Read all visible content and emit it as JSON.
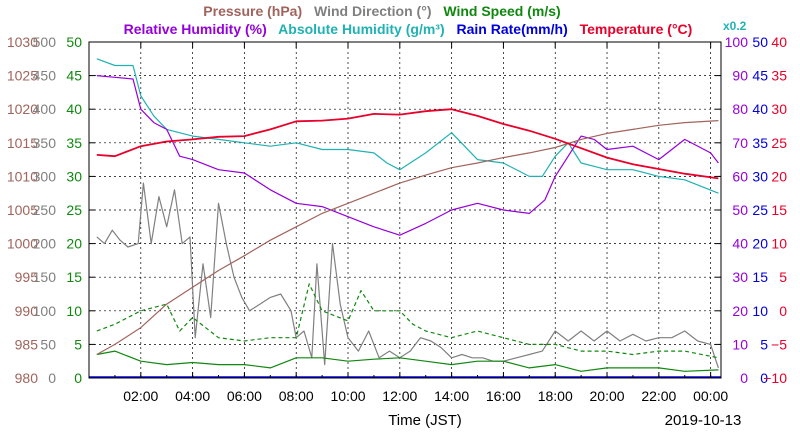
{
  "chart_data": {
    "type": "line",
    "title_row1": [
      {
        "text": "Pressure (hPa)",
        "color": "#a0645c"
      },
      {
        "text": "Wind Direction (°)",
        "color": "#808080"
      },
      {
        "text": "Wind Speed (m/s)",
        "color": "#108810"
      }
    ],
    "title_row2": [
      {
        "text": "Relative Humidity (%)",
        "color": "#9600dc"
      },
      {
        "text": "Absolute Humidity (g/m³)",
        "color": "#20b2b2"
      },
      {
        "text": "Rain Rate(mm/h)",
        "color": "#0000dd"
      },
      {
        "text": "Temperature (°C)",
        "color": "#e8002a"
      }
    ],
    "abs_scale_note": "x0.2",
    "xlabel": "Time (JST)",
    "date": "2019-10-13",
    "x_unit": "hours since 2019-10-13 00:00 JST",
    "xlim": [
      0,
      24.4
    ],
    "x_ticks": [
      {
        "h": 2,
        "label": "02:00"
      },
      {
        "h": 4,
        "label": "04:00"
      },
      {
        "h": 6,
        "label": "06:00"
      },
      {
        "h": 8,
        "label": "08:00"
      },
      {
        "h": 10,
        "label": "10:00"
      },
      {
        "h": 12,
        "label": "12:00"
      },
      {
        "h": 14,
        "label": "14:00"
      },
      {
        "h": 16,
        "label": "16:00"
      },
      {
        "h": 18,
        "label": "18:00"
      },
      {
        "h": 20,
        "label": "20:00"
      },
      {
        "h": 22,
        "label": "22:00"
      },
      {
        "h": 24,
        "label": "00:00"
      }
    ],
    "axes": [
      {
        "name": "Pressure",
        "side": "left",
        "color": "#a0645c",
        "min": 980,
        "max": 1030,
        "ticks": [
          "980",
          "985",
          "990",
          "995",
          "1000",
          "1005",
          "1010",
          "1015",
          "1020",
          "1025",
          "1030"
        ]
      },
      {
        "name": "Wind Direction",
        "side": "left",
        "color": "#808080",
        "min": 0,
        "max": 500,
        "ticks": [
          "0",
          "50",
          "100",
          "150",
          "200",
          "250",
          "300",
          "350",
          "400",
          "450",
          "500"
        ]
      },
      {
        "name": "Wind Speed",
        "side": "left",
        "color": "#108810",
        "min": 0,
        "max": 50,
        "ticks": [
          "0",
          "5",
          "10",
          "15",
          "20",
          "25",
          "30",
          "35",
          "40",
          "45",
          "50"
        ]
      },
      {
        "name": "Relative Humidity",
        "side": "right",
        "color": "#9600dc",
        "min": 0,
        "max": 100,
        "ticks": [
          "0",
          "10",
          "20",
          "30",
          "40",
          "50",
          "60",
          "70",
          "80",
          "90",
          "100"
        ]
      },
      {
        "name": "Rain Rate",
        "side": "right",
        "color": "#0000dd",
        "min": 0,
        "max": 50,
        "ticks": [
          "0",
          "5",
          "10",
          "15",
          "20",
          "25",
          "30",
          "35",
          "40",
          "45",
          "50"
        ]
      },
      {
        "name": "Temperature",
        "side": "right",
        "color": "#e8002a",
        "min": -10,
        "max": 40,
        "ticks": [
          "−10",
          "−5",
          "0",
          "5",
          "10",
          "15",
          "20",
          "25",
          "30",
          "35",
          "40"
        ]
      }
    ],
    "series": [
      {
        "name": "Pressure",
        "color": "#a0645c",
        "axis": "Pressure",
        "style": "solid",
        "points": [
          [
            0.3,
            983.5
          ],
          [
            1,
            985
          ],
          [
            2,
            987.5
          ],
          [
            3,
            991
          ],
          [
            4,
            993.5
          ],
          [
            5,
            996
          ],
          [
            6,
            998.2
          ],
          [
            7,
            1000.5
          ],
          [
            8,
            1002.5
          ],
          [
            9,
            1004.5
          ],
          [
            10,
            1006
          ],
          [
            11,
            1007.5
          ],
          [
            12,
            1009
          ],
          [
            13,
            1010.2
          ],
          [
            14,
            1011.3
          ],
          [
            15,
            1012
          ],
          [
            16,
            1012.8
          ],
          [
            17,
            1013.5
          ],
          [
            18,
            1014.3
          ],
          [
            19,
            1015.5
          ],
          [
            20,
            1016.4
          ],
          [
            21,
            1017
          ],
          [
            22,
            1017.6
          ],
          [
            23,
            1018
          ],
          [
            24.3,
            1018.3
          ]
        ]
      },
      {
        "name": "Temperature",
        "color": "#e8002a",
        "axis": "Temperature",
        "style": "solid",
        "points": [
          [
            0.3,
            23.2
          ],
          [
            1,
            23
          ],
          [
            2,
            24.5
          ],
          [
            3,
            25.2
          ],
          [
            4,
            25.5
          ],
          [
            5,
            25.9
          ],
          [
            6,
            26
          ],
          [
            7,
            27
          ],
          [
            8,
            28.2
          ],
          [
            9,
            28.3
          ],
          [
            10,
            28.6
          ],
          [
            11,
            29.3
          ],
          [
            12,
            29.2
          ],
          [
            13,
            29.7
          ],
          [
            14,
            30
          ],
          [
            15,
            29
          ],
          [
            16,
            27.8
          ],
          [
            17,
            26.8
          ],
          [
            18,
            25.6
          ],
          [
            19,
            24.2
          ],
          [
            20,
            22.8
          ],
          [
            21,
            21.8
          ],
          [
            22,
            21.1
          ],
          [
            23,
            20.4
          ],
          [
            24.3,
            19.7
          ]
        ]
      },
      {
        "name": "Relative Humidity",
        "color": "#9600dc",
        "axis": "Relative Humidity",
        "style": "solid",
        "points": [
          [
            0.3,
            90
          ],
          [
            1,
            89.5
          ],
          [
            1.7,
            89
          ],
          [
            2,
            80
          ],
          [
            2.5,
            76
          ],
          [
            3,
            74
          ],
          [
            3.5,
            66
          ],
          [
            4,
            65
          ],
          [
            5,
            62
          ],
          [
            6,
            61
          ],
          [
            7,
            56
          ],
          [
            8,
            52
          ],
          [
            9,
            51
          ],
          [
            10,
            48
          ],
          [
            11,
            45
          ],
          [
            12,
            42.5
          ],
          [
            13,
            46
          ],
          [
            14,
            50
          ],
          [
            15,
            52
          ],
          [
            16,
            50
          ],
          [
            17,
            49
          ],
          [
            17.6,
            53
          ],
          [
            18,
            60
          ],
          [
            18.5,
            66
          ],
          [
            19,
            72
          ],
          [
            19.5,
            71
          ],
          [
            20,
            68
          ],
          [
            21,
            69
          ],
          [
            22,
            65
          ],
          [
            23,
            71
          ],
          [
            24,
            67
          ],
          [
            24.3,
            64
          ]
        ]
      },
      {
        "name": "Absolute Humidity",
        "color": "#20b2b2",
        "axis": "Relative Humidity",
        "style": "solid",
        "points": [
          [
            0.3,
            95
          ],
          [
            1,
            93
          ],
          [
            1.7,
            93
          ],
          [
            2,
            84
          ],
          [
            2.5,
            78
          ],
          [
            3,
            74
          ],
          [
            4,
            72
          ],
          [
            5,
            71
          ],
          [
            6,
            70
          ],
          [
            7,
            69
          ],
          [
            8,
            70
          ],
          [
            9,
            68
          ],
          [
            10,
            68
          ],
          [
            11,
            67
          ],
          [
            11.5,
            64
          ],
          [
            12,
            62
          ],
          [
            13,
            67
          ],
          [
            14,
            73
          ],
          [
            14.5,
            69
          ],
          [
            15,
            65
          ],
          [
            16,
            64
          ],
          [
            17,
            60
          ],
          [
            17.5,
            60
          ],
          [
            18,
            66
          ],
          [
            18.5,
            70
          ],
          [
            19,
            64
          ],
          [
            19.5,
            63
          ],
          [
            20,
            62
          ],
          [
            21,
            62
          ],
          [
            22,
            60
          ],
          [
            23,
            59
          ],
          [
            24.3,
            55
          ]
        ]
      },
      {
        "name": "Wind Speed",
        "color": "#108810",
        "axis": "Wind Speed",
        "style": "solid",
        "points": [
          [
            0.3,
            3.5
          ],
          [
            1,
            4
          ],
          [
            2,
            2.5
          ],
          [
            3,
            2
          ],
          [
            4,
            2.3
          ],
          [
            5,
            2
          ],
          [
            6,
            2
          ],
          [
            7,
            1.5
          ],
          [
            8,
            3
          ],
          [
            9,
            3
          ],
          [
            10,
            2.5
          ],
          [
            11,
            2.8
          ],
          [
            12,
            3
          ],
          [
            13,
            2.5
          ],
          [
            14,
            2
          ],
          [
            15,
            2.5
          ],
          [
            16,
            2.5
          ],
          [
            17,
            1.5
          ],
          [
            18,
            2
          ],
          [
            19,
            1
          ],
          [
            20,
            1.5
          ],
          [
            21,
            1.5
          ],
          [
            22,
            1.5
          ],
          [
            23,
            1
          ],
          [
            24.3,
            1.2
          ]
        ]
      },
      {
        "name": "Wind Speed (gust)",
        "color": "#108810",
        "axis": "Wind Speed",
        "style": "dashed",
        "points": [
          [
            0.3,
            7
          ],
          [
            1,
            8
          ],
          [
            2,
            10
          ],
          [
            3,
            11
          ],
          [
            3.5,
            7
          ],
          [
            4,
            9
          ],
          [
            5,
            6
          ],
          [
            6,
            5.5
          ],
          [
            7,
            6
          ],
          [
            8,
            6
          ],
          [
            8.5,
            14
          ],
          [
            9,
            10
          ],
          [
            10,
            8.5
          ],
          [
            10.5,
            13
          ],
          [
            11,
            10
          ],
          [
            12,
            10
          ],
          [
            12.5,
            8
          ],
          [
            13,
            7
          ],
          [
            14,
            6
          ],
          [
            15,
            7
          ],
          [
            16,
            6
          ],
          [
            17,
            5
          ],
          [
            18,
            5
          ],
          [
            19,
            4
          ],
          [
            20,
            4
          ],
          [
            21,
            3.5
          ],
          [
            22,
            4
          ],
          [
            23,
            4
          ],
          [
            24.3,
            3
          ]
        ]
      },
      {
        "name": "Wind Direction",
        "color": "#808080",
        "axis": "Wind Direction",
        "style": "solid",
        "points": [
          [
            0.3,
            210
          ],
          [
            0.6,
            200
          ],
          [
            0.9,
            220
          ],
          [
            1.2,
            205
          ],
          [
            1.5,
            195
          ],
          [
            1.9,
            200
          ],
          [
            2.1,
            290
          ],
          [
            2.4,
            200
          ],
          [
            2.7,
            270
          ],
          [
            3,
            225
          ],
          [
            3.3,
            280
          ],
          [
            3.6,
            200
          ],
          [
            3.9,
            210
          ],
          [
            4.1,
            60
          ],
          [
            4.4,
            170
          ],
          [
            4.7,
            90
          ],
          [
            5,
            260
          ],
          [
            5.3,
            200
          ],
          [
            5.6,
            150
          ],
          [
            5.9,
            120
          ],
          [
            6.2,
            100
          ],
          [
            6.6,
            110
          ],
          [
            7,
            120
          ],
          [
            7.4,
            125
          ],
          [
            7.8,
            100
          ],
          [
            8,
            60
          ],
          [
            8.3,
            70
          ],
          [
            8.6,
            30
          ],
          [
            8.8,
            170
          ],
          [
            9.1,
            20
          ],
          [
            9.4,
            200
          ],
          [
            9.7,
            110
          ],
          [
            10,
            60
          ],
          [
            10.4,
            40
          ],
          [
            10.8,
            70
          ],
          [
            11.2,
            30
          ],
          [
            11.6,
            40
          ],
          [
            12,
            30
          ],
          [
            12.4,
            40
          ],
          [
            12.8,
            60
          ],
          [
            13.2,
            55
          ],
          [
            13.6,
            45
          ],
          [
            14,
            30
          ],
          [
            14.4,
            35
          ],
          [
            14.8,
            30
          ],
          [
            15.2,
            30
          ],
          [
            15.6,
            25
          ],
          [
            16,
            25
          ],
          [
            16.5,
            30
          ],
          [
            17,
            35
          ],
          [
            17.5,
            40
          ],
          [
            18,
            70
          ],
          [
            18.5,
            55
          ],
          [
            19,
            70
          ],
          [
            19.5,
            55
          ],
          [
            20,
            70
          ],
          [
            20.5,
            55
          ],
          [
            21,
            65
          ],
          [
            21.5,
            55
          ],
          [
            22,
            60
          ],
          [
            22.5,
            60
          ],
          [
            23,
            70
          ],
          [
            23.5,
            55
          ],
          [
            24,
            50
          ],
          [
            24.3,
            15
          ]
        ]
      }
    ],
    "rain_rate": {
      "name": "Rain Rate",
      "color": "#0000dd",
      "axis": "Rain Rate",
      "value": 0
    }
  }
}
